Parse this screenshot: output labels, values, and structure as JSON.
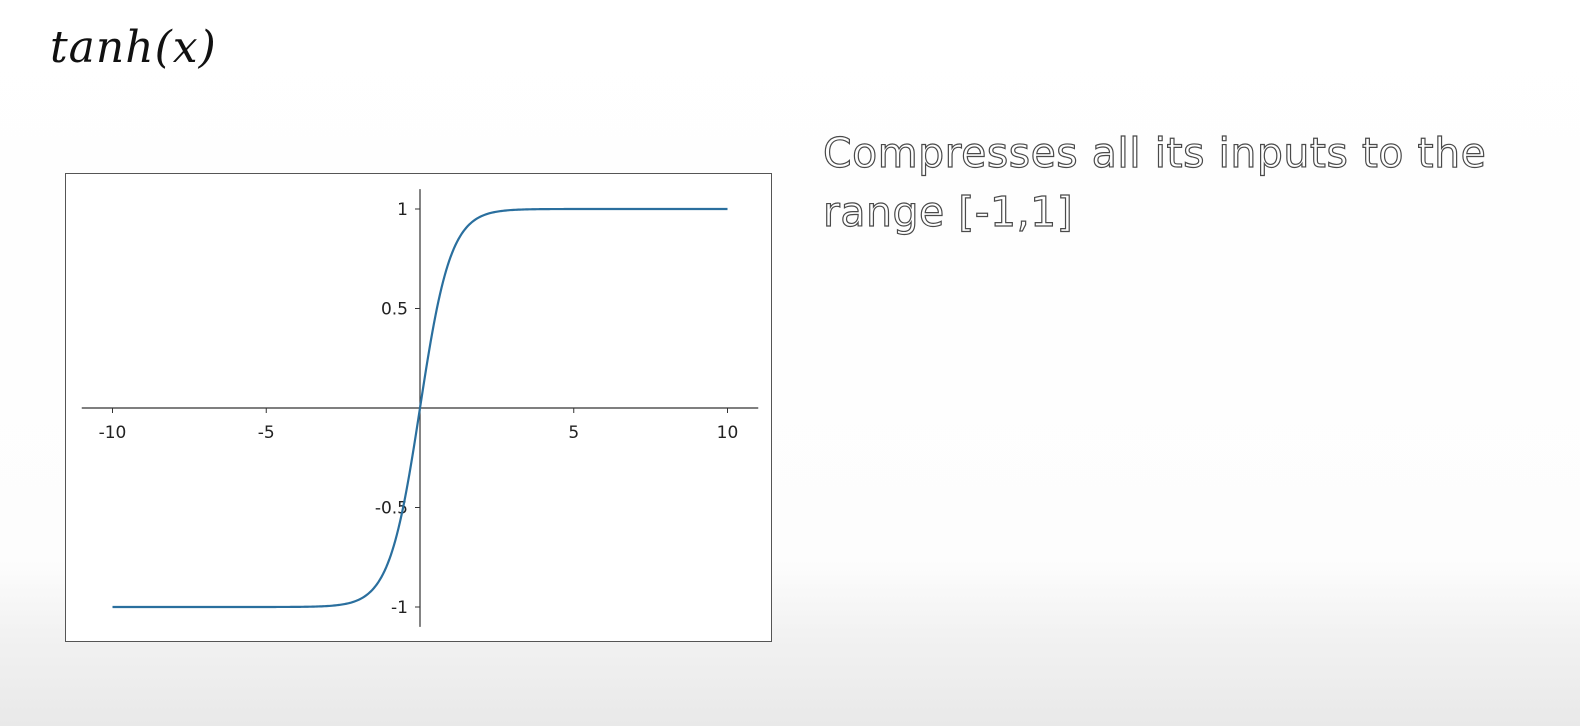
{
  "slide": {
    "title": "tanh(x)",
    "description": "Compresses all its inputs to the range [-1,1]"
  },
  "colors": {
    "line": "#2a6f9e",
    "axis": "#333333"
  },
  "chart_data": {
    "type": "line",
    "function": "tanh",
    "x_ticks": [
      -10,
      -5,
      5,
      10
    ],
    "x_tick_labels": [
      "-10",
      "-5",
      "5",
      "10"
    ],
    "y_ticks": [
      1,
      0.5,
      -0.5,
      -1
    ],
    "y_tick_labels": [
      "1",
      "0.5",
      "-0.5",
      "-1"
    ],
    "xlim": [
      -11,
      11
    ],
    "ylim": [
      -1.1,
      1.1
    ],
    "x_range": [
      -10,
      10
    ],
    "x": [
      -10,
      -8,
      -6,
      -4,
      -3,
      -2,
      -1.5,
      -1,
      -0.5,
      0,
      0.5,
      1,
      1.5,
      2,
      3,
      4,
      6,
      8,
      10
    ],
    "y": [
      -1.0,
      -1.0,
      -1.0,
      -0.9993,
      -0.9951,
      -0.964,
      -0.9051,
      -0.7616,
      -0.4621,
      0.0,
      0.4621,
      0.7616,
      0.9051,
      0.964,
      0.9951,
      0.9993,
      1.0,
      1.0,
      1.0
    ],
    "grid": false,
    "title": "",
    "xlabel": "",
    "ylabel": ""
  }
}
